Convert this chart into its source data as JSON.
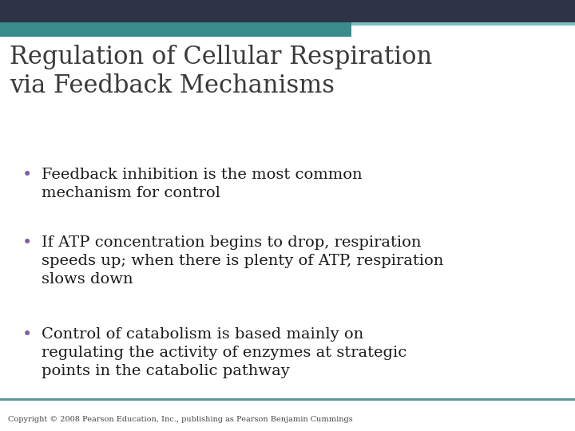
{
  "title_line1": "Regulation of Cellular Respiration",
  "title_line2": "via Feedback Mechanisms",
  "title_color": "#3a3a3a",
  "title_fontsize": 22,
  "bullet_color": "#7b5ea7",
  "bullet_text_color": "#1a1a1a",
  "bullet_fontsize": 14,
  "bullets": [
    "Feedback inhibition is the most common\nmechanism for control",
    "If ATP concentration begins to drop, respiration\nspeeds up; when there is plenty of ATP, respiration\nslows down",
    "Control of catabolism is based mainly on\nregulating the activity of enzymes at strategic\npoints in the catabolic pathway"
  ],
  "background_color": "#ffffff",
  "header_dark_color": "#2e3347",
  "header_teal_color": "#3a8c8c",
  "header_accent_color": "#7bbfbf",
  "footer_text": "Copyright © 2008 Pearson Education, Inc., publishing as Pearson Benjamin Cummings",
  "footer_fontsize": 7,
  "footer_color": "#444444",
  "footer_line_color": "#5a9a9a"
}
